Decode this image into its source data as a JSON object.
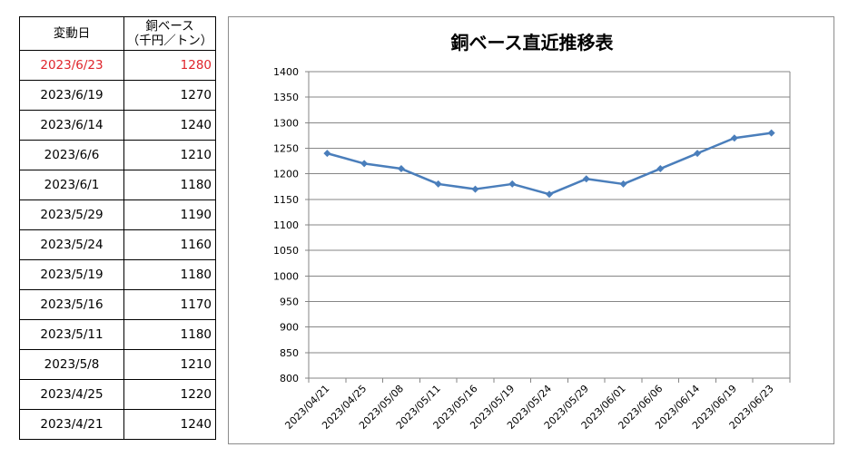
{
  "table": {
    "header": {
      "date": "変動日",
      "price_line1": "銅ベース",
      "price_line2": "（千円／トン）"
    },
    "rows": [
      {
        "date": "2023/6/23",
        "price": "1280"
      },
      {
        "date": "2023/6/19",
        "price": "1270"
      },
      {
        "date": "2023/6/14",
        "price": "1240"
      },
      {
        "date": "2023/6/6",
        "price": "1210"
      },
      {
        "date": "2023/6/1",
        "price": "1180"
      },
      {
        "date": "2023/5/29",
        "price": "1190"
      },
      {
        "date": "2023/5/24",
        "price": "1160"
      },
      {
        "date": "2023/5/19",
        "price": "1180"
      },
      {
        "date": "2023/5/16",
        "price": "1170"
      },
      {
        "date": "2023/5/11",
        "price": "1180"
      },
      {
        "date": "2023/5/8",
        "price": "1210"
      },
      {
        "date": "2023/4/25",
        "price": "1220"
      },
      {
        "date": "2023/4/21",
        "price": "1240"
      }
    ],
    "latest_color": "#e0242b"
  },
  "chart_data": {
    "type": "line",
    "title": "銅ベース直近推移表",
    "xlabel": "",
    "ylabel": "",
    "categories": [
      "2023/04/21",
      "2023/04/25",
      "2023/05/08",
      "2023/05/11",
      "2023/05/16",
      "2023/05/19",
      "2023/05/24",
      "2023/05/29",
      "2023/06/01",
      "2023/06/06",
      "2023/06/14",
      "2023/06/19",
      "2023/06/23"
    ],
    "series": [
      {
        "values": [
          1240,
          1220,
          1210,
          1180,
          1170,
          1180,
          1160,
          1190,
          1180,
          1210,
          1240,
          1270,
          1280
        ],
        "color": "#4a7ebb",
        "marker": "diamond"
      }
    ],
    "ylim": [
      800,
      1400
    ],
    "yticks": [
      800,
      850,
      900,
      950,
      1000,
      1050,
      1100,
      1150,
      1200,
      1250,
      1300,
      1350,
      1400
    ],
    "grid": true,
    "legend": "none"
  }
}
